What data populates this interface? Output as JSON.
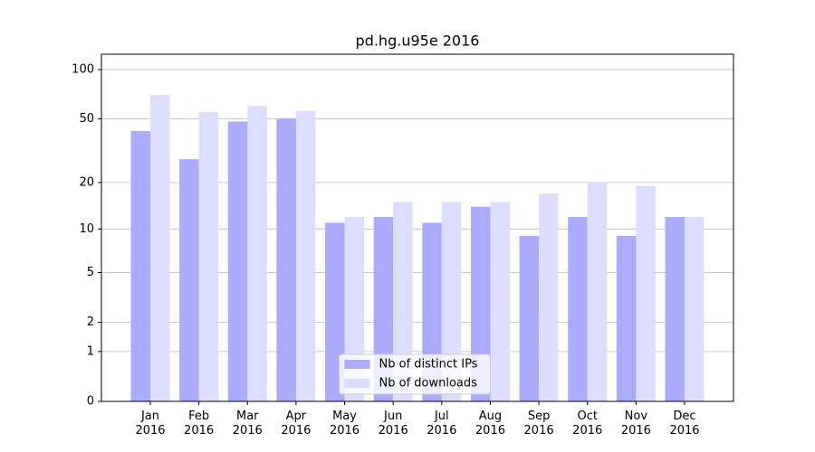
{
  "chart_data": {
    "type": "bar",
    "title": "pd.hg.u95e 2016",
    "categories": [
      "Jan\n2016",
      "Feb\n2016",
      "Mar\n2016",
      "Apr\n2016",
      "May\n2016",
      "Jun\n2016",
      "Jul\n2016",
      "Aug\n2016",
      "Sep\n2016",
      "Oct\n2016",
      "Nov\n2016",
      "Dec\n2016"
    ],
    "series": [
      {
        "name": "Nb of distinct IPs",
        "color": "#aaaaff",
        "values": [
          42,
          28,
          48,
          50,
          11,
          12,
          11,
          14,
          9,
          12,
          9,
          12
        ]
      },
      {
        "name": "Nb of downloads",
        "color": "#ddddff",
        "values": [
          70,
          55,
          60,
          56,
          12,
          15,
          15,
          15,
          17,
          20,
          19,
          12
        ]
      }
    ],
    "yscale": "log1p",
    "ylim": [
      0,
      124
    ],
    "yticks": [
      0,
      1,
      2,
      5,
      10,
      20,
      50,
      100
    ],
    "grid": true,
    "legend": "lower center"
  }
}
